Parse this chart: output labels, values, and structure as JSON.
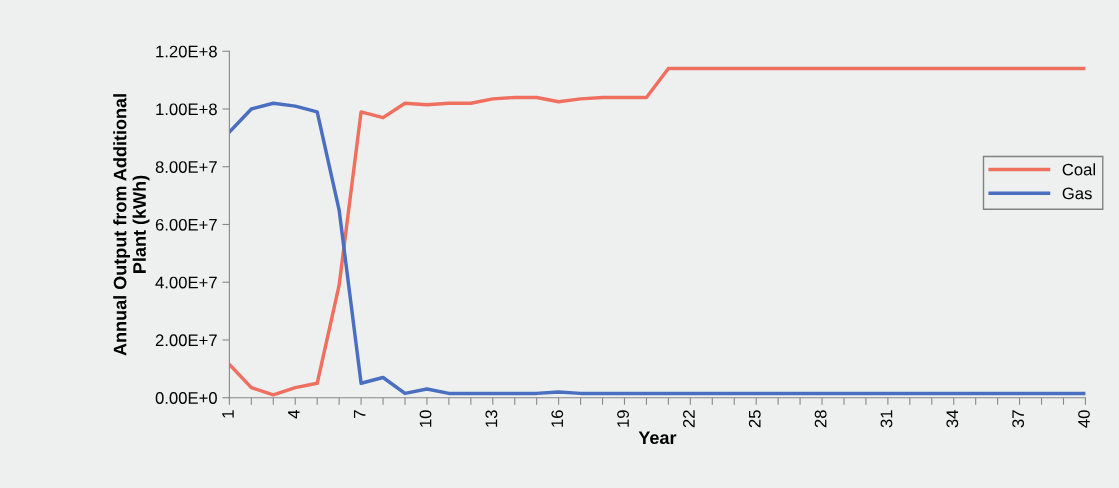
{
  "chart_data": {
    "type": "line",
    "xlabel": "Year",
    "ylabel": "Annual Output from Additional\nPlant (kWh)",
    "categories": [
      "1",
      null,
      null,
      "4",
      null,
      null,
      "7",
      null,
      null,
      "10",
      null,
      null,
      "13",
      null,
      null,
      "16",
      null,
      null,
      "19",
      null,
      null,
      "22",
      null,
      null,
      "25",
      null,
      null,
      "28",
      null,
      null,
      "31",
      null,
      null,
      "34",
      null,
      null,
      "37",
      null,
      null,
      "40"
    ],
    "series": [
      {
        "name": "Coal",
        "color": "#f07060",
        "values": [
          11500000,
          3500000,
          1000000,
          3500000,
          5000000,
          39000000,
          99000000,
          97000000,
          102000000,
          101500000,
          102000000,
          102000000,
          103500000,
          104000000,
          104000000,
          102500000,
          103500000,
          104000000,
          104000000,
          104000000,
          114000000,
          114000000,
          114000000,
          114000000,
          114000000,
          114000000,
          114000000,
          114000000,
          114000000,
          114000000,
          114000000,
          114000000,
          114000000,
          114000000,
          114000000,
          114000000,
          114000000,
          114000000,
          114000000,
          114000000
        ]
      },
      {
        "name": "Gas",
        "color": "#4a6fc0",
        "values": [
          92000000,
          100000000,
          102000000,
          101000000,
          99000000,
          65000000,
          5000000,
          7000000,
          1500000,
          3000000,
          1500000,
          1500000,
          1500000,
          1500000,
          1500000,
          2000000,
          1500000,
          1500000,
          1500000,
          1500000,
          1500000,
          1500000,
          1500000,
          1500000,
          1500000,
          1500000,
          1500000,
          1500000,
          1500000,
          1500000,
          1500000,
          1500000,
          1500000,
          1500000,
          1500000,
          1500000,
          1500000,
          1500000,
          1500000,
          1500000
        ]
      }
    ],
    "ylim": [
      0,
      120000000
    ],
    "yticks": [
      {
        "value": 0,
        "label": "0.00E+0"
      },
      {
        "value": 20000000,
        "label": "2.00E+7"
      },
      {
        "value": 40000000,
        "label": "4.00E+7"
      },
      {
        "value": 60000000,
        "label": "6.00E+7"
      },
      {
        "value": 80000000,
        "label": "8.00E+7"
      },
      {
        "value": 100000000,
        "label": "1.00E+8"
      },
      {
        "value": 120000000,
        "label": "1.20E+8"
      }
    ],
    "legend": "right",
    "grid": false,
    "marker": "none",
    "line_style": "solid"
  }
}
